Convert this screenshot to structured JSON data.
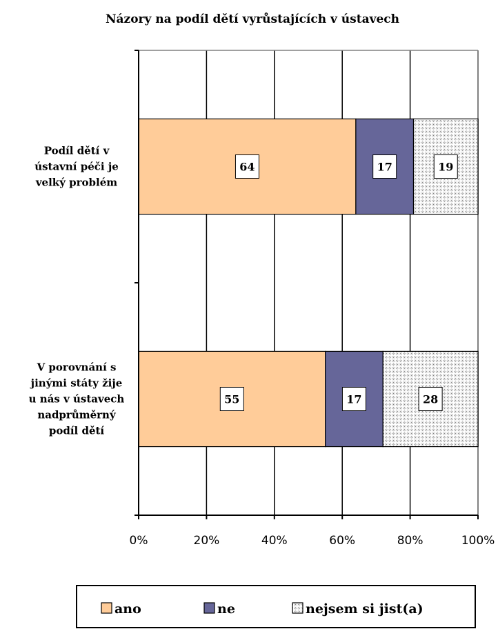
{
  "chart_data": {
    "type": "bar",
    "orientation": "horizontal",
    "stacked": true,
    "title": "Názory na podíl dětí vyrůstajících v ústavech",
    "categories": [
      "Podíl dětí v ústavní péči je velký problém",
      "V porovnání s jinými státy žije u nás v ústavech nadprůměrný podíl dětí"
    ],
    "category_lines": [
      [
        "Podíl dětí v",
        "ústavní péči je",
        "velký problém"
      ],
      [
        "V porovnání s",
        "jinými státy žije",
        "u nás v ústavech",
        "nadprůměrný",
        "podíl dětí"
      ]
    ],
    "series": [
      {
        "name": "ano",
        "values": [
          64,
          55
        ],
        "color": "#ffcc99"
      },
      {
        "name": "ne",
        "values": [
          17,
          17
        ],
        "color": "#666699"
      },
      {
        "name": "nejsem si jist(a)",
        "values": [
          19,
          28
        ],
        "color": "#d9d9d9",
        "pattern": "dotted"
      }
    ],
    "xlim": [
      0,
      100
    ],
    "x_ticks": [
      "0%",
      "20%",
      "40%",
      "60%",
      "80%",
      "100%"
    ],
    "grid": true,
    "legend_position": "bottom"
  }
}
